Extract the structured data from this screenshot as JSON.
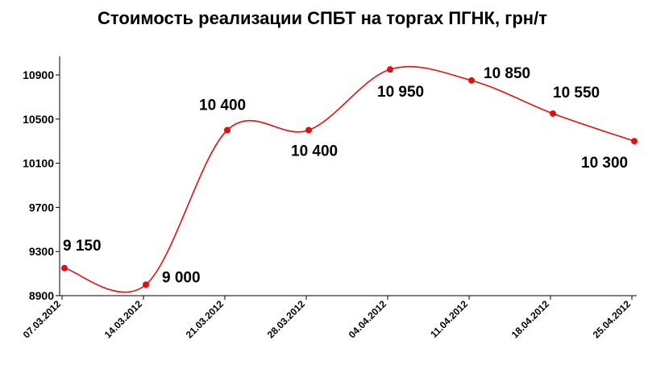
{
  "chart_data": {
    "type": "line",
    "title": "Стоимость реализации СПБТ на торгах ПГНК, грн/т",
    "categories": [
      "07.03.2012",
      "14.03.2012",
      "21.03.2012",
      "28.03.2012",
      "04.04.2012",
      "11.04.2012",
      "18.04.2012",
      "25.04.2012"
    ],
    "series": [
      {
        "values": [
          9150,
          9000,
          10400,
          10400,
          10950,
          10850,
          10550,
          10300
        ],
        "labels": [
          "9 150",
          "9 000",
          "10 400",
          "10 400",
          "10 950",
          "10 850",
          "10 550",
          "10 300"
        ]
      }
    ],
    "ylim": [
      8900,
      10900
    ],
    "yticks": [
      8900,
      9300,
      9700,
      10100,
      10500,
      10900
    ],
    "smooth": true,
    "grid": false,
    "legend": "none",
    "colors": {
      "line": "#e01010",
      "marker": "#e01010",
      "axis": "#000000"
    }
  }
}
